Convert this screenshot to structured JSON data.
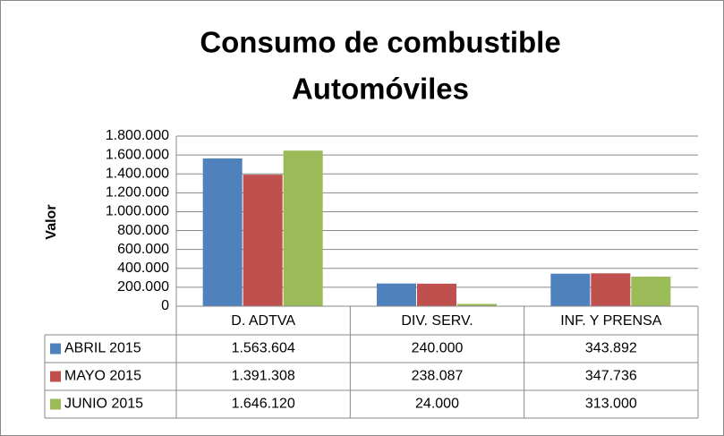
{
  "chart_data": {
    "type": "bar",
    "title": [
      "Consumo de combustible",
      "Automóviles"
    ],
    "y_label": "Valor",
    "categories": [
      "D. ADTVA",
      "DIV. SERV.",
      "INF. Y PRENSA"
    ],
    "series": [
      {
        "name": "ABRIL 2015",
        "color": "#4f81bd",
        "values": [
          1563604,
          240000,
          343892
        ],
        "value_labels": [
          "1.563.604",
          "240.000",
          "343.892"
        ]
      },
      {
        "name": "MAYO 2015",
        "color": "#c0504d",
        "values": [
          1391308,
          238087,
          347736
        ],
        "value_labels": [
          "1.391.308",
          "238.087",
          "347.736"
        ]
      },
      {
        "name": "JUNIO 2015",
        "color": "#9bbb59",
        "values": [
          1646120,
          24000,
          313000
        ],
        "value_labels": [
          "1.646.120",
          "24.000",
          "313.000"
        ]
      }
    ],
    "ylim": [
      0,
      1800000
    ],
    "yticks": [
      0,
      {
        "value": 200000,
        "label": "200.000"
      },
      {
        "value": 400000,
        "label": "400.000"
      },
      {
        "value": 600000,
        "label": "600.000"
      },
      {
        "value": 800000,
        "label": "800.000"
      },
      {
        "value": 1000000,
        "label": "1.000.000"
      },
      {
        "value": 1200000,
        "label": "1.200.000"
      },
      {
        "value": 1400000,
        "label": "1.400.000"
      },
      {
        "value": 1600000,
        "label": "1.600.000"
      },
      {
        "value": 1800000,
        "label": "1.800.000"
      }
    ],
    "grid": true
  }
}
